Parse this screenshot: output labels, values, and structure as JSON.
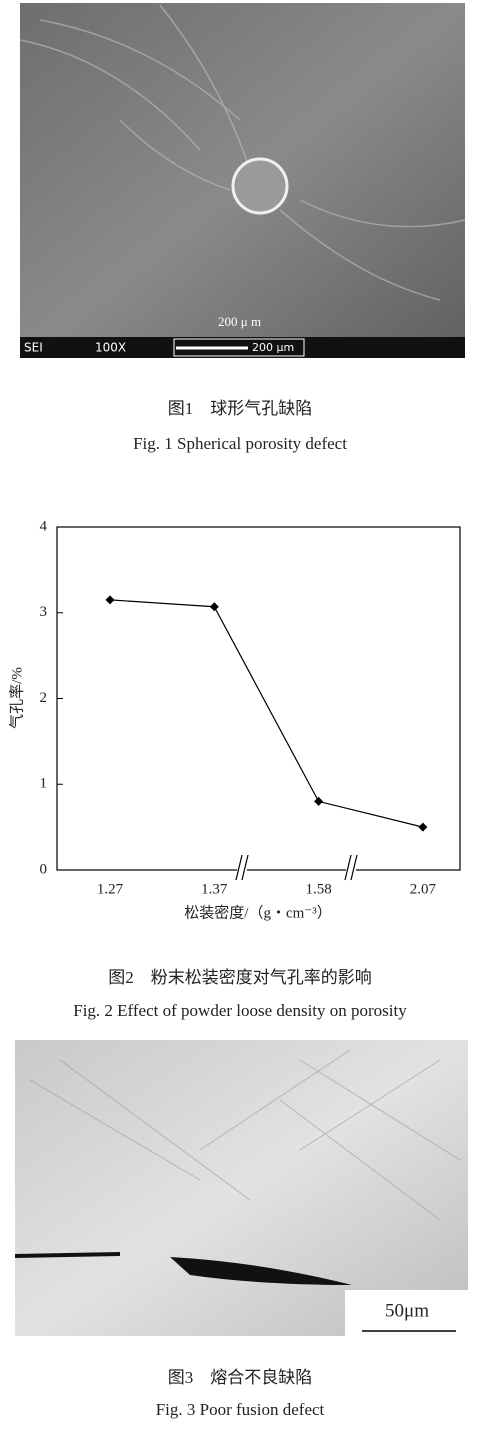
{
  "figure1": {
    "scale_text": "200 μ m",
    "mode": "SEI",
    "magnification": "100X",
    "scale_bar": "200 μm",
    "caption_cn": "图1　球形气孔缺陷",
    "caption_en": "Fig. 1 Spherical porosity defect"
  },
  "chart_data": {
    "type": "line",
    "y_label": "气孔率/%",
    "x_label": "松装密度/（g・cm⁻³）",
    "categories": [
      "1.27",
      "1.37",
      "1.58",
      "2.07"
    ],
    "values": [
      3.15,
      3.07,
      0.8,
      0.5
    ],
    "color": "#000000",
    "ylim": [
      0,
      4
    ],
    "yticks": [
      0,
      1,
      2,
      3,
      4
    ],
    "grid": false
  },
  "figure2": {
    "caption_cn": "图2　粉末松装密度对气孔率的影响",
    "caption_en": "Fig. 2 Effect of powder loose density on porosity"
  },
  "figure3": {
    "scale_bar": "50μm",
    "caption_cn": "图3　熔合不良缺陷",
    "caption_en": "Fig. 3 Poor fusion defect"
  }
}
